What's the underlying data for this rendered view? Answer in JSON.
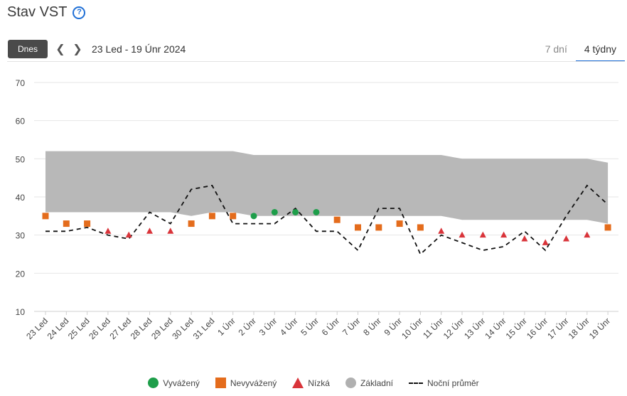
{
  "header": {
    "title": "Stav VST",
    "help_icon": "?"
  },
  "toolbar": {
    "today_label": "Dnes",
    "range_label": "23 Led - 19 Únr 2024"
  },
  "tabs": [
    {
      "label": "7 dní",
      "active": false
    },
    {
      "label": "4 týdny",
      "active": true
    }
  ],
  "chart_data": {
    "type": "scatter",
    "categories": [
      "23 Led",
      "24 Led",
      "25 Led",
      "26 Led",
      "27 Led",
      "28 Led",
      "29 Led",
      "30 Led",
      "31 Led",
      "1 Únr",
      "2 Únr",
      "3 Únr",
      "4 Únr",
      "5 Únr",
      "6 Únr",
      "7 Únr",
      "8 Únr",
      "9 Únr",
      "10 Únr",
      "11 Únr",
      "12 Únr",
      "13 Únr",
      "14 Únr",
      "15 Únr",
      "16 Únr",
      "17 Únr",
      "18 Únr",
      "19 Únr"
    ],
    "ylim": [
      10,
      70
    ],
    "yticks": [
      10,
      20,
      30,
      40,
      50,
      60,
      70
    ],
    "baseline": {
      "name": "Základní",
      "upper": [
        52,
        52,
        52,
        52,
        52,
        52,
        52,
        52,
        52,
        52,
        51,
        51,
        51,
        51,
        51,
        51,
        51,
        51,
        51,
        51,
        50,
        50,
        50,
        50,
        50,
        50,
        50,
        49
      ],
      "lower": [
        36,
        36,
        36,
        36,
        36,
        36,
        36,
        35,
        36,
        36,
        35,
        35,
        35,
        35,
        35,
        35,
        35,
        35,
        35,
        35,
        34,
        34,
        34,
        34,
        34,
        34,
        34,
        33
      ]
    },
    "night_average": {
      "name": "Noční průměr",
      "values": [
        31,
        31,
        32,
        30,
        29,
        36,
        33,
        42,
        43,
        33,
        33,
        33,
        37,
        31,
        31,
        26,
        37,
        37,
        25,
        30,
        28,
        26,
        27,
        31,
        26,
        35,
        43,
        38
      ]
    },
    "series": [
      {
        "name": "Vyvážený",
        "marker": "circle",
        "color": "#1e9e4a",
        "points": [
          {
            "x": "2 Únr",
            "y": 35
          },
          {
            "x": "3 Únr",
            "y": 36
          },
          {
            "x": "4 Únr",
            "y": 36
          },
          {
            "x": "5 Únr",
            "y": 36
          }
        ]
      },
      {
        "name": "Nevyvážený",
        "marker": "square",
        "color": "#e46c1c",
        "points": [
          {
            "x": "23 Led",
            "y": 35
          },
          {
            "x": "24 Led",
            "y": 33
          },
          {
            "x": "25 Led",
            "y": 33
          },
          {
            "x": "30 Led",
            "y": 33
          },
          {
            "x": "31 Led",
            "y": 35
          },
          {
            "x": "1 Únr",
            "y": 35
          },
          {
            "x": "6 Únr",
            "y": 34
          },
          {
            "x": "7 Únr",
            "y": 32
          },
          {
            "x": "8 Únr",
            "y": 32
          },
          {
            "x": "9 Únr",
            "y": 33
          },
          {
            "x": "10 Únr",
            "y": 32
          },
          {
            "x": "19 Únr",
            "y": 32
          }
        ]
      },
      {
        "name": "Nízká",
        "marker": "triangle",
        "color": "#d9343a",
        "points": [
          {
            "x": "26 Led",
            "y": 31
          },
          {
            "x": "27 Led",
            "y": 30
          },
          {
            "x": "28 Led",
            "y": 31
          },
          {
            "x": "29 Led",
            "y": 31
          },
          {
            "x": "11 Únr",
            "y": 31
          },
          {
            "x": "12 Únr",
            "y": 30
          },
          {
            "x": "13 Únr",
            "y": 30
          },
          {
            "x": "14 Únr",
            "y": 30
          },
          {
            "x": "15 Únr",
            "y": 29
          },
          {
            "x": "16 Únr",
            "y": 28
          },
          {
            "x": "17 Únr",
            "y": 29
          },
          {
            "x": "18 Únr",
            "y": 30
          }
        ]
      }
    ],
    "grid": true,
    "legend": {
      "position": "bottom",
      "items": [
        "Vyvážený",
        "Nevyvážený",
        "Nízká",
        "Základní",
        "Noční průměr"
      ]
    }
  }
}
